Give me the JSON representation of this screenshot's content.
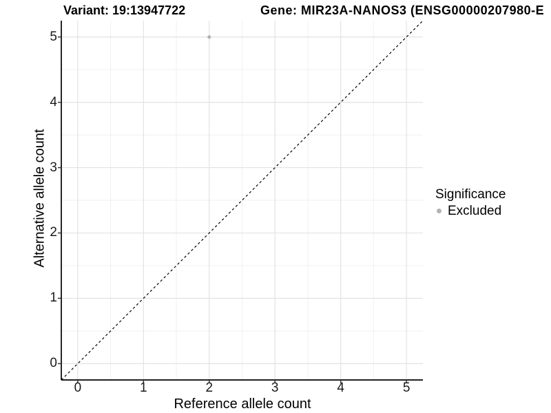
{
  "header": {
    "variant_title": "Variant: 19:13947722",
    "gene_title": "Gene: MIR23A-NANOS3 (ENSG00000207980-E"
  },
  "chart_data": {
    "type": "scatter",
    "title_left": "Variant: 19:13947722",
    "title_right": "Gene: MIR23A-NANOS3 (ENSG00000207980-E",
    "xlabel": "Reference allele count",
    "ylabel": "Alternative allele count",
    "x_ticks": [
      0,
      1,
      2,
      3,
      4,
      5
    ],
    "y_ticks": [
      0,
      1,
      2,
      3,
      4,
      5
    ],
    "xlim": [
      -0.25,
      5.25
    ],
    "ylim": [
      -0.25,
      5.25
    ],
    "grid": "major+minor",
    "minor_step": 0.5,
    "points": [
      {
        "x": 2,
        "y": 5,
        "significance": "Excluded"
      }
    ],
    "reference_line": {
      "type": "identity",
      "style": "dashed",
      "from": [
        -0.25,
        -0.25
      ],
      "to": [
        5.25,
        5.25
      ]
    },
    "legend": {
      "title": "Significance",
      "position": "right",
      "entries": [
        {
          "label": "Excluded",
          "color": "#b3b3b3",
          "marker": "circle"
        }
      ]
    }
  },
  "colors": {
    "background": "#ffffff",
    "grid_major": "#e2e2e2",
    "grid_minor": "#f0f0f0",
    "axis_line": "#000000",
    "tick_mark": "#333333",
    "identity_line": "#000000",
    "point": "#b3b3b3",
    "text": "#000000"
  }
}
